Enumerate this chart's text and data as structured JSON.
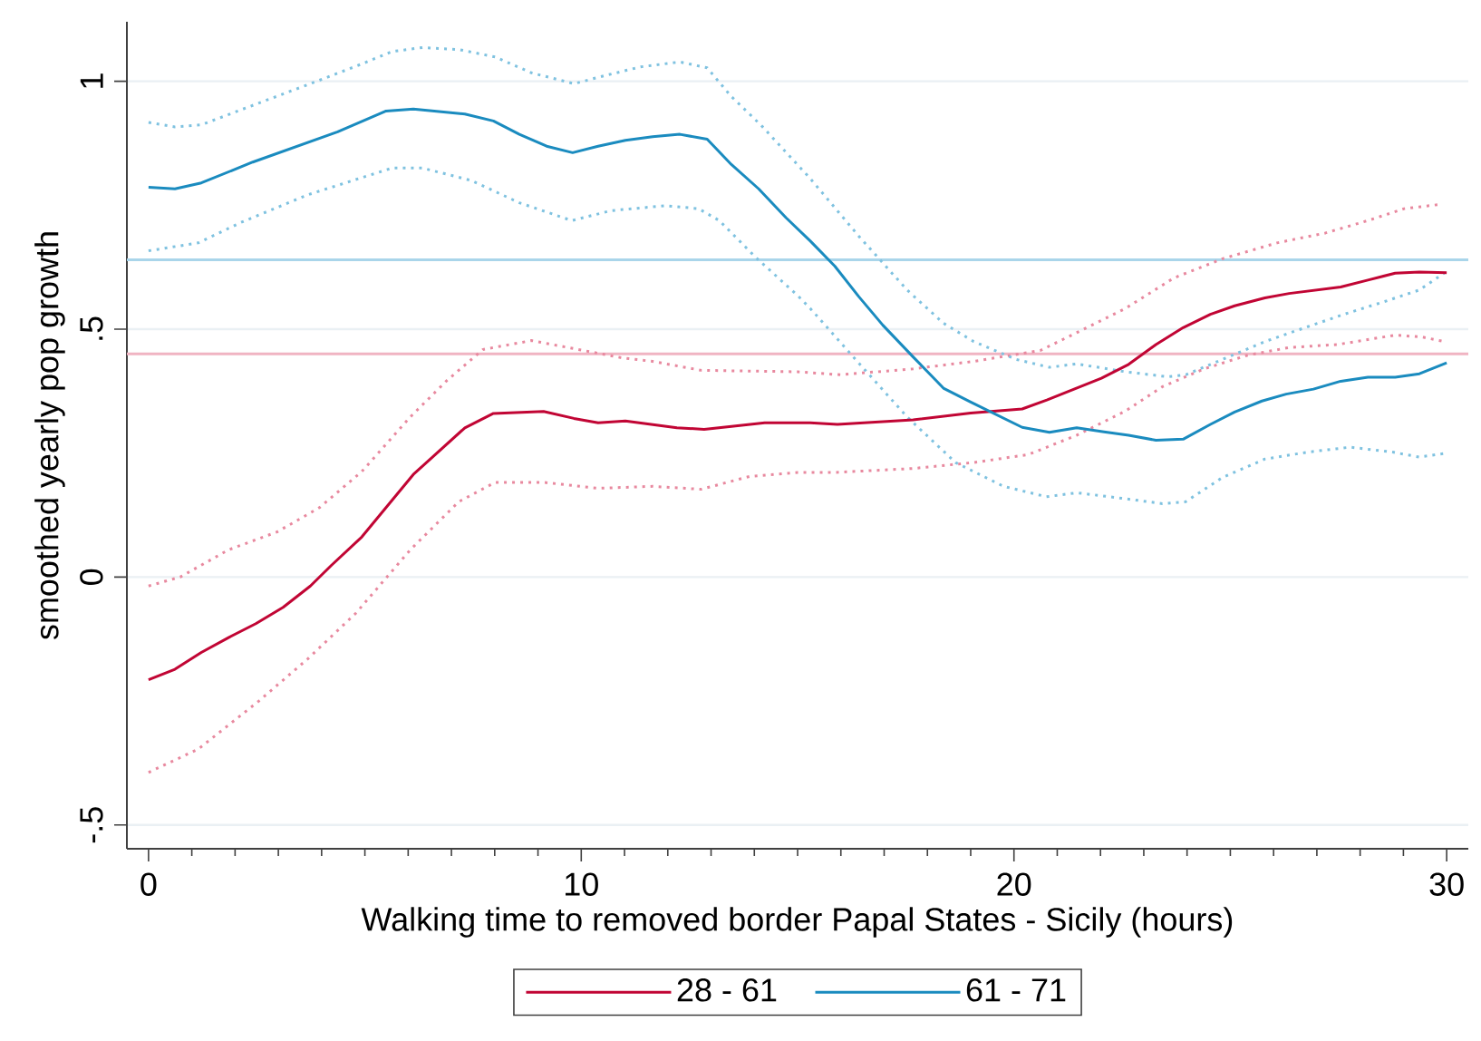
{
  "chart_data": {
    "type": "line",
    "xlabel": "Walking time to removed border Papal States - Sicily (hours)",
    "ylabel": "smoothed yearly  pop growth",
    "xlim": [
      -0.5,
      30.5
    ],
    "ylim": [
      -0.548,
      1.12
    ],
    "xticks": [
      0,
      {
        "value": 1,
        "label": null
      },
      {
        "value": 2,
        "label": null
      },
      {
        "value": 3,
        "label": null
      },
      {
        "value": 4,
        "label": null
      },
      {
        "value": 5,
        "label": null
      },
      {
        "value": 6,
        "label": null
      },
      {
        "value": 7,
        "label": null
      },
      {
        "value": 8,
        "label": null
      },
      {
        "value": 9,
        "label": null
      },
      10,
      {
        "value": 11,
        "label": null
      },
      {
        "value": 12,
        "label": null
      },
      {
        "value": 13,
        "label": null
      },
      {
        "value": 14,
        "label": null
      },
      {
        "value": 15,
        "label": null
      },
      {
        "value": 16,
        "label": null
      },
      {
        "value": 17,
        "label": null
      },
      {
        "value": 18,
        "label": null
      },
      {
        "value": 19,
        "label": null
      },
      20,
      {
        "value": 21,
        "label": null
      },
      {
        "value": 22,
        "label": null
      },
      {
        "value": 23,
        "label": null
      },
      {
        "value": 24,
        "label": null
      },
      {
        "value": 25,
        "label": null
      },
      {
        "value": 26,
        "label": null
      },
      {
        "value": 27,
        "label": null
      },
      {
        "value": 28,
        "label": null
      },
      {
        "value": 29,
        "label": null
      },
      30
    ],
    "yticks": [
      {
        "value": -0.5,
        "label": "-.5"
      },
      0,
      {
        "value": 0.5,
        "label": ".5"
      },
      1
    ],
    "grid": "y",
    "legend": "bottom",
    "ref_lines": [
      {
        "axis": "y",
        "value": 0.64,
        "color": "#a9d5ea"
      },
      {
        "axis": "y",
        "value": 0.45,
        "color": "#f0b4c2"
      }
    ],
    "series": [
      {
        "name": "28 - 61",
        "color": "#c10534",
        "line_style": "solid",
        "x": [
          0,
          0.61,
          1.22,
          1.85,
          2.48,
          3.11,
          3.74,
          4.23,
          4.93,
          6.12,
          7.31,
          7.97,
          9.13,
          9.83,
          10.39,
          11.02,
          12.21,
          12.84,
          13.47,
          14.24,
          15.29,
          15.92,
          17.67,
          19.0,
          20.19,
          20.76,
          21.39,
          22.02,
          22.65,
          23.28,
          23.91,
          24.54,
          25.1,
          25.8,
          26.36,
          27.55,
          28.18,
          28.81,
          29.37,
          30.0
        ],
        "values": [
          -0.207,
          -0.186,
          -0.152,
          -0.122,
          -0.094,
          -0.061,
          -0.018,
          0.024,
          0.081,
          0.207,
          0.301,
          0.33,
          0.334,
          0.32,
          0.311,
          0.315,
          0.301,
          0.298,
          0.304,
          0.311,
          0.311,
          0.308,
          0.317,
          0.331,
          0.339,
          0.357,
          0.379,
          0.401,
          0.429,
          0.469,
          0.503,
          0.53,
          0.547,
          0.563,
          0.572,
          0.585,
          0.599,
          0.613,
          0.615,
          0.614
        ]
      },
      {
        "name": "61 - 71",
        "color": "#1a8bbf",
        "line_style": "solid",
        "x": [
          0,
          0.61,
          1.22,
          2.41,
          4.37,
          5.49,
          6.12,
          7.31,
          7.97,
          8.57,
          9.2,
          9.8,
          10.39,
          11.02,
          11.65,
          12.28,
          12.91,
          13.47,
          14.1,
          14.73,
          15.29,
          15.86,
          16.41,
          16.97,
          17.67,
          18.37,
          19.0,
          20.19,
          20.82,
          21.45,
          22.08,
          22.65,
          23.28,
          23.91,
          24.54,
          25.1,
          25.73,
          26.29,
          26.92,
          27.55,
          28.18,
          28.81,
          29.37,
          30.0
        ],
        "values": [
          0.786,
          0.783,
          0.795,
          0.837,
          0.898,
          0.94,
          0.944,
          0.934,
          0.92,
          0.893,
          0.869,
          0.856,
          0.869,
          0.881,
          0.888,
          0.893,
          0.883,
          0.832,
          0.783,
          0.725,
          0.678,
          0.627,
          0.566,
          0.508,
          0.444,
          0.381,
          0.353,
          0.302,
          0.292,
          0.301,
          0.293,
          0.286,
          0.276,
          0.278,
          0.308,
          0.333,
          0.355,
          0.369,
          0.379,
          0.395,
          0.403,
          0.403,
          0.41,
          0.432
        ]
      },
      {
        "color": "#e8899f",
        "line_style": "dotted",
        "x": [
          0,
          0.73,
          1.85,
          2.97,
          3.95,
          4.93,
          6.05,
          6.89,
          7.73,
          8.85,
          9.69,
          10.95,
          11.65,
          12.77,
          15.01,
          15.99,
          17.67,
          19.07,
          20.61,
          21.59,
          22.58,
          23.69,
          24.82,
          26.08,
          27.2,
          28.18,
          29.02,
          29.79
        ],
        "values": [
          -0.018,
          0.0,
          0.055,
          0.091,
          0.14,
          0.213,
          0.323,
          0.396,
          0.459,
          0.477,
          0.463,
          0.442,
          0.435,
          0.417,
          0.414,
          0.408,
          0.42,
          0.435,
          0.457,
          0.499,
          0.542,
          0.603,
          0.642,
          0.674,
          0.694,
          0.719,
          0.743,
          0.751
        ]
      },
      {
        "color": "#e8899f",
        "line_style": "dotted",
        "x": [
          0,
          1.15,
          2.55,
          3.68,
          4.79,
          6.05,
          7.17,
          8.01,
          9.13,
          10.39,
          11.65,
          12.77,
          13.89,
          15.01,
          15.86,
          17.67,
          19.07,
          20.33,
          21.45,
          22.58,
          23.43,
          24.4,
          25.38,
          26.36,
          27.48,
          28.81,
          29.44,
          29.94
        ],
        "values": [
          -0.394,
          -0.347,
          -0.25,
          -0.165,
          -0.073,
          0.055,
          0.152,
          0.191,
          0.191,
          0.179,
          0.183,
          0.177,
          0.203,
          0.211,
          0.211,
          0.219,
          0.231,
          0.247,
          0.286,
          0.335,
          0.384,
          0.42,
          0.447,
          0.463,
          0.469,
          0.488,
          0.484,
          0.475
        ]
      },
      {
        "color": "#7fc2e0",
        "line_style": "dotted",
        "x": [
          0,
          0.61,
          1.22,
          2.55,
          3.95,
          4.93,
          5.63,
          6.33,
          7.17,
          8.01,
          8.85,
          9.83,
          10.53,
          11.37,
          12.28,
          12.91,
          13.47,
          14.17,
          15.29,
          16.41,
          17.53,
          18.37,
          19.07,
          20.05,
          20.82,
          21.45,
          22.58,
          23.55,
          23.97,
          24.82,
          25.8,
          26.79,
          27.63,
          28.61,
          29.37,
          29.94
        ],
        "values": [
          0.917,
          0.908,
          0.912,
          0.956,
          1.002,
          1.035,
          1.06,
          1.068,
          1.064,
          1.049,
          1.017,
          0.995,
          1.011,
          1.029,
          1.039,
          1.027,
          0.969,
          0.91,
          0.804,
          0.688,
          0.579,
          0.512,
          0.475,
          0.439,
          0.423,
          0.43,
          0.414,
          0.404,
          0.408,
          0.439,
          0.475,
          0.505,
          0.53,
          0.557,
          0.579,
          0.613
        ]
      },
      {
        "color": "#7fc2e0",
        "line_style": "dotted",
        "x": [
          0,
          1.15,
          2.13,
          3.68,
          5.63,
          6.33,
          7.45,
          8.57,
          9.78,
          10.69,
          11.94,
          12.71,
          13.19,
          14.03,
          15.01,
          15.29,
          16.41,
          17.53,
          18.65,
          19.76,
          20.75,
          21.45,
          22.58,
          23.43,
          23.97,
          24.82,
          25.8,
          26.79,
          27.77,
          28.75,
          29.37,
          30.0
        ],
        "values": [
          0.658,
          0.674,
          0.715,
          0.771,
          0.825,
          0.825,
          0.8,
          0.755,
          0.719,
          0.739,
          0.749,
          0.743,
          0.719,
          0.645,
          0.567,
          0.542,
          0.432,
          0.323,
          0.231,
          0.183,
          0.162,
          0.17,
          0.158,
          0.148,
          0.152,
          0.201,
          0.238,
          0.252,
          0.262,
          0.252,
          0.242,
          0.25
        ]
      }
    ]
  }
}
